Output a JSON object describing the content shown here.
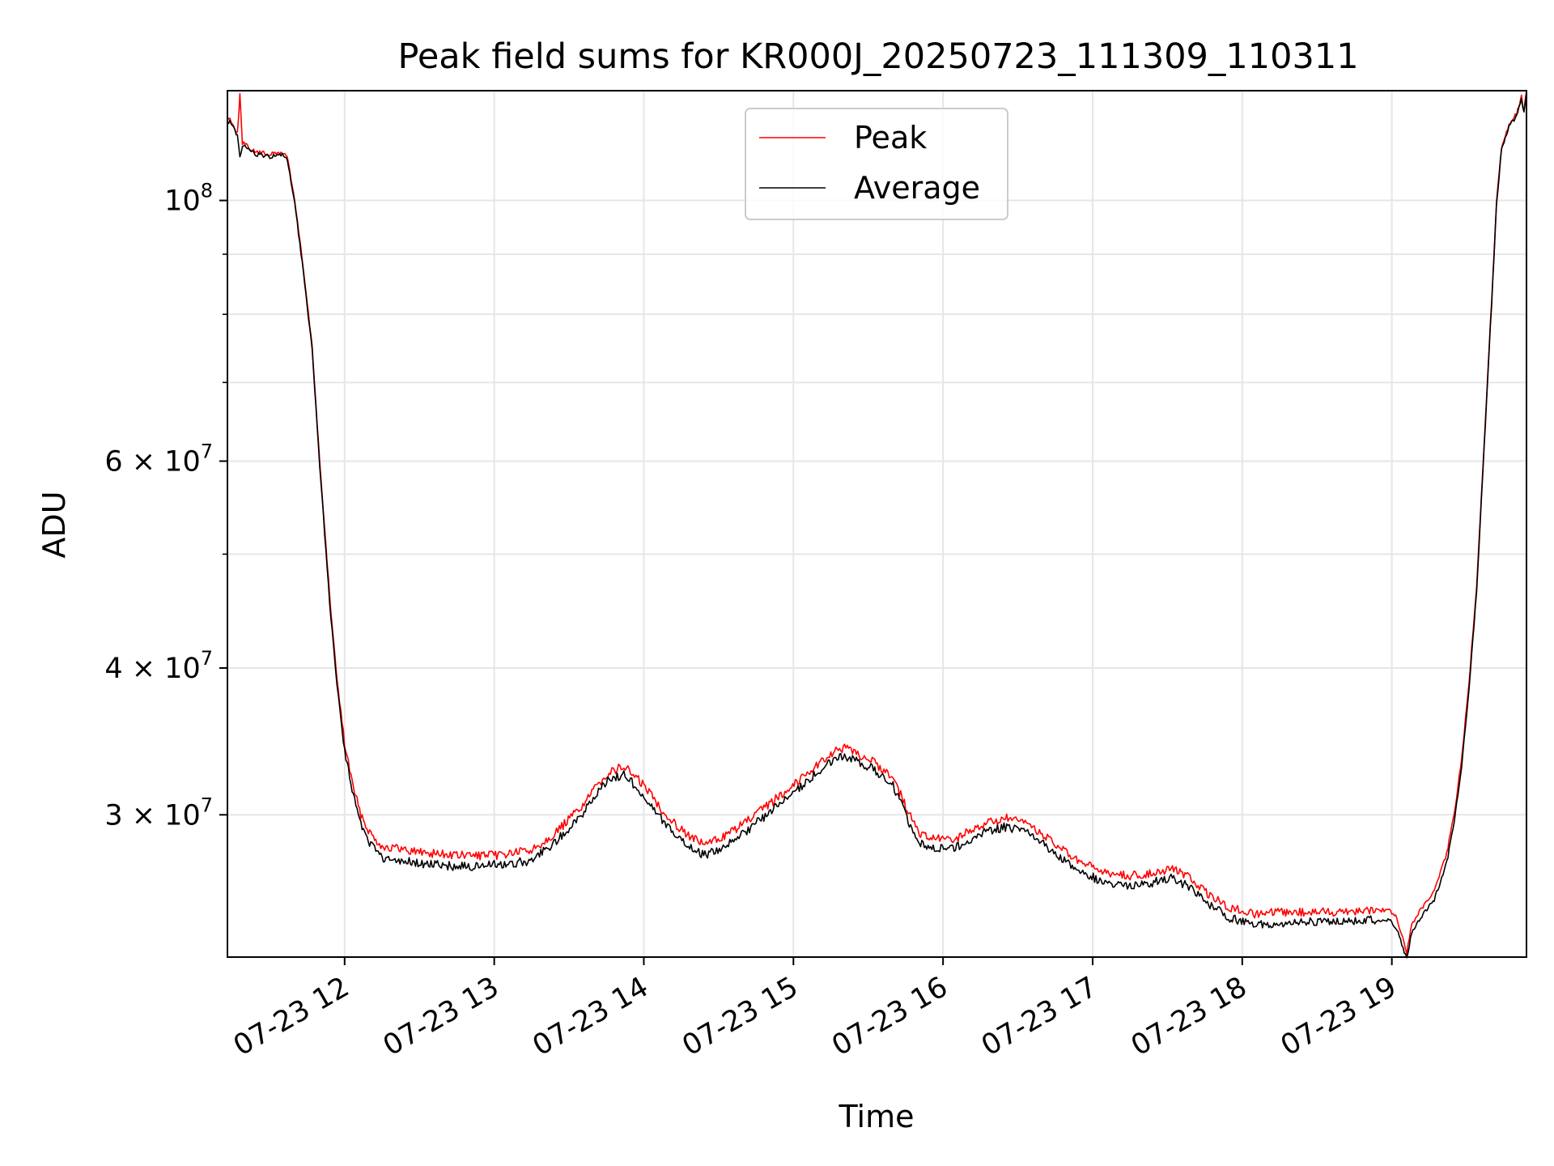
{
  "chart_data": {
    "type": "line",
    "title": "Peak field sums for KR000J_20250723_111309_110311",
    "xlabel": "Time",
    "ylabel": "ADU",
    "yscale": "log",
    "xlim": [
      "2025-07-23 11:13",
      "2025-07-23 19:54"
    ],
    "ylim": [
      22700000,
      124000000
    ],
    "grid": true,
    "legend": "upper center",
    "x_ticks": [
      {
        "x": "2025-07-23 12:00",
        "label": "07-23 12"
      },
      {
        "x": "2025-07-23 13:00",
        "label": "07-23 13"
      },
      {
        "x": "2025-07-23 14:00",
        "label": "07-23 14"
      },
      {
        "x": "2025-07-23 15:00",
        "label": "07-23 15"
      },
      {
        "x": "2025-07-23 16:00",
        "label": "07-23 16"
      },
      {
        "x": "2025-07-23 17:00",
        "label": "07-23 17"
      },
      {
        "x": "2025-07-23 18:00",
        "label": "07-23 18"
      },
      {
        "x": "2025-07-23 19:00",
        "label": "07-23 19"
      }
    ],
    "y_ticks": [
      {
        "y": 30000000,
        "label": "3 × 10^7",
        "base": "3 × 10",
        "exp": "7"
      },
      {
        "y": 40000000,
        "label": "4 × 10^7",
        "base": "4 × 10",
        "exp": "7"
      },
      {
        "y": 60000000,
        "label": "6 × 10^7",
        "base": "6 × 10",
        "exp": "7"
      },
      {
        "y": 100000000,
        "label": "10^8",
        "base": "10",
        "exp": "8"
      }
    ],
    "y_minor_ticks": [
      50000000,
      70000000,
      80000000,
      90000000
    ],
    "series": [
      {
        "name": "Peak",
        "color": "#ff0000",
        "points": [
          [
            "2025-07-23 11:13",
            117000000
          ],
          [
            "2025-07-23 11:14",
            117500000
          ],
          [
            "2025-07-23 11:17",
            114000000
          ],
          [
            "2025-07-23 11:18",
            123000000
          ],
          [
            "2025-07-23 11:19",
            112000000
          ],
          [
            "2025-07-23 11:24",
            110000000
          ],
          [
            "2025-07-23 11:30",
            109500000
          ],
          [
            "2025-07-23 11:35",
            109800000
          ],
          [
            "2025-07-23 11:37",
            109000000
          ],
          [
            "2025-07-23 11:40",
            100000000
          ],
          [
            "2025-07-23 11:43",
            89000000
          ],
          [
            "2025-07-23 11:47",
            75000000
          ],
          [
            "2025-07-23 11:50",
            60000000
          ],
          [
            "2025-07-23 11:54",
            46000000
          ],
          [
            "2025-07-23 11:57",
            39000000
          ],
          [
            "2025-07-23 12:00",
            34500000
          ],
          [
            "2025-07-23 12:03",
            32000000
          ],
          [
            "2025-07-23 12:06",
            30200000
          ],
          [
            "2025-07-23 12:10",
            29000000
          ],
          [
            "2025-07-23 12:15",
            28200000
          ],
          [
            "2025-07-23 12:30",
            27900000
          ],
          [
            "2025-07-23 12:45",
            27700000
          ],
          [
            "2025-07-23 13:00",
            27700000
          ],
          [
            "2025-07-23 13:15",
            28000000
          ],
          [
            "2025-07-23 13:25",
            29000000
          ],
          [
            "2025-07-23 13:35",
            30500000
          ],
          [
            "2025-07-23 13:45",
            32500000
          ],
          [
            "2025-07-23 13:52",
            33000000
          ],
          [
            "2025-07-23 14:00",
            31800000
          ],
          [
            "2025-07-23 14:10",
            29800000
          ],
          [
            "2025-07-23 14:20",
            28600000
          ],
          [
            "2025-07-23 14:25",
            28300000
          ],
          [
            "2025-07-23 14:35",
            29000000
          ],
          [
            "2025-07-23 14:45",
            30000000
          ],
          [
            "2025-07-23 14:55",
            31200000
          ],
          [
            "2025-07-23 15:05",
            32500000
          ],
          [
            "2025-07-23 15:15",
            33800000
          ],
          [
            "2025-07-23 15:20",
            34200000
          ],
          [
            "2025-07-23 15:30",
            33500000
          ],
          [
            "2025-07-23 15:40",
            32300000
          ],
          [
            "2025-07-23 15:45",
            30500000
          ],
          [
            "2025-07-23 15:50",
            29000000
          ],
          [
            "2025-07-23 15:55",
            28600000
          ],
          [
            "2025-07-23 16:05",
            28600000
          ],
          [
            "2025-07-23 16:15",
            29400000
          ],
          [
            "2025-07-23 16:25",
            29800000
          ],
          [
            "2025-07-23 16:35",
            29400000
          ],
          [
            "2025-07-23 16:45",
            28300000
          ],
          [
            "2025-07-23 16:55",
            27300000
          ],
          [
            "2025-07-23 17:05",
            26800000
          ],
          [
            "2025-07-23 17:15",
            26600000
          ],
          [
            "2025-07-23 17:25",
            26800000
          ],
          [
            "2025-07-23 17:32",
            27000000
          ],
          [
            "2025-07-23 17:38",
            26600000
          ],
          [
            "2025-07-23 17:45",
            25800000
          ],
          [
            "2025-07-23 17:55",
            25000000
          ],
          [
            "2025-07-23 18:05",
            24700000
          ],
          [
            "2025-07-23 18:20",
            24800000
          ],
          [
            "2025-07-23 18:35",
            24800000
          ],
          [
            "2025-07-23 18:50",
            24900000
          ],
          [
            "2025-07-23 18:59",
            24900000
          ],
          [
            "2025-07-23 19:02",
            24500000
          ],
          [
            "2025-07-23 19:05",
            23300000
          ],
          [
            "2025-07-23 19:06",
            22900000
          ],
          [
            "2025-07-23 19:08",
            24200000
          ],
          [
            "2025-07-23 19:12",
            25000000
          ],
          [
            "2025-07-23 19:17",
            25800000
          ],
          [
            "2025-07-23 19:22",
            27800000
          ],
          [
            "2025-07-23 19:25",
            30000000
          ],
          [
            "2025-07-23 19:28",
            33500000
          ],
          [
            "2025-07-23 19:31",
            39000000
          ],
          [
            "2025-07-23 19:34",
            47000000
          ],
          [
            "2025-07-23 19:37",
            62000000
          ],
          [
            "2025-07-23 19:40",
            82000000
          ],
          [
            "2025-07-23 19:42",
            100000000
          ],
          [
            "2025-07-23 19:44",
            111000000
          ],
          [
            "2025-07-23 19:47",
            116000000
          ],
          [
            "2025-07-23 19:50",
            118500000
          ],
          [
            "2025-07-23 19:52",
            122500000
          ],
          [
            "2025-07-23 19:53",
            119000000
          ],
          [
            "2025-07-23 19:54",
            124000000
          ]
        ]
      },
      {
        "name": "Average",
        "color": "#000000",
        "points": [
          [
            "2025-07-23 11:13",
            116500000
          ],
          [
            "2025-07-23 11:14",
            117000000
          ],
          [
            "2025-07-23 11:17",
            113500000
          ],
          [
            "2025-07-23 11:18",
            108500000
          ],
          [
            "2025-07-23 11:19",
            111500000
          ],
          [
            "2025-07-23 11:24",
            109500000
          ],
          [
            "2025-07-23 11:30",
            109000000
          ],
          [
            "2025-07-23 11:35",
            109300000
          ],
          [
            "2025-07-23 11:37",
            108500000
          ],
          [
            "2025-07-23 11:40",
            99500000
          ],
          [
            "2025-07-23 11:43",
            88500000
          ],
          [
            "2025-07-23 11:47",
            74500000
          ],
          [
            "2025-07-23 11:50",
            59500000
          ],
          [
            "2025-07-23 11:54",
            45500000
          ],
          [
            "2025-07-23 11:57",
            38600000
          ],
          [
            "2025-07-23 12:00",
            34000000
          ],
          [
            "2025-07-23 12:03",
            31500000
          ],
          [
            "2025-07-23 12:06",
            29700000
          ],
          [
            "2025-07-23 12:10",
            28400000
          ],
          [
            "2025-07-23 12:15",
            27500000
          ],
          [
            "2025-07-23 12:30",
            27300000
          ],
          [
            "2025-07-23 12:45",
            27100000
          ],
          [
            "2025-07-23 13:00",
            27200000
          ],
          [
            "2025-07-23 13:15",
            27400000
          ],
          [
            "2025-07-23 13:25",
            28500000
          ],
          [
            "2025-07-23 13:35",
            30000000
          ],
          [
            "2025-07-23 13:45",
            32000000
          ],
          [
            "2025-07-23 13:52",
            32500000
          ],
          [
            "2025-07-23 14:00",
            31200000
          ],
          [
            "2025-07-23 14:10",
            29200000
          ],
          [
            "2025-07-23 14:20",
            28000000
          ],
          [
            "2025-07-23 14:25",
            27700000
          ],
          [
            "2025-07-23 14:35",
            28400000
          ],
          [
            "2025-07-23 14:45",
            29500000
          ],
          [
            "2025-07-23 14:55",
            30700000
          ],
          [
            "2025-07-23 15:05",
            32000000
          ],
          [
            "2025-07-23 15:15",
            33300000
          ],
          [
            "2025-07-23 15:20",
            33700000
          ],
          [
            "2025-07-23 15:30",
            33000000
          ],
          [
            "2025-07-23 15:40",
            31800000
          ],
          [
            "2025-07-23 15:45",
            30000000
          ],
          [
            "2025-07-23 15:50",
            28500000
          ],
          [
            "2025-07-23 15:55",
            28100000
          ],
          [
            "2025-07-23 16:05",
            28100000
          ],
          [
            "2025-07-23 16:15",
            28900000
          ],
          [
            "2025-07-23 16:25",
            29300000
          ],
          [
            "2025-07-23 16:35",
            28900000
          ],
          [
            "2025-07-23 16:45",
            27800000
          ],
          [
            "2025-07-23 16:55",
            26800000
          ],
          [
            "2025-07-23 17:05",
            26300000
          ],
          [
            "2025-07-23 17:15",
            26100000
          ],
          [
            "2025-07-23 17:25",
            26300000
          ],
          [
            "2025-07-23 17:32",
            26500000
          ],
          [
            "2025-07-23 17:38",
            26100000
          ],
          [
            "2025-07-23 17:45",
            25300000
          ],
          [
            "2025-07-23 17:55",
            24500000
          ],
          [
            "2025-07-23 18:05",
            24200000
          ],
          [
            "2025-07-23 18:20",
            24300000
          ],
          [
            "2025-07-23 18:35",
            24300000
          ],
          [
            "2025-07-23 18:50",
            24400000
          ],
          [
            "2025-07-23 18:59",
            24400000
          ],
          [
            "2025-07-23 19:02",
            24000000
          ],
          [
            "2025-07-23 19:05",
            22900000
          ],
          [
            "2025-07-23 19:06",
            22700000
          ],
          [
            "2025-07-23 19:08",
            23800000
          ],
          [
            "2025-07-23 19:12",
            24600000
          ],
          [
            "2025-07-23 19:17",
            25400000
          ],
          [
            "2025-07-23 19:22",
            27300000
          ],
          [
            "2025-07-23 19:25",
            29500000
          ],
          [
            "2025-07-23 19:28",
            33000000
          ],
          [
            "2025-07-23 19:31",
            38500000
          ],
          [
            "2025-07-23 19:34",
            46500000
          ],
          [
            "2025-07-23 19:37",
            61500000
          ],
          [
            "2025-07-23 19:40",
            81500000
          ],
          [
            "2025-07-23 19:42",
            99500000
          ],
          [
            "2025-07-23 19:44",
            110500000
          ],
          [
            "2025-07-23 19:47",
            115500000
          ],
          [
            "2025-07-23 19:50",
            118000000
          ],
          [
            "2025-07-23 19:52",
            122000000
          ],
          [
            "2025-07-23 19:53",
            118500000
          ],
          [
            "2025-07-23 19:54",
            123500000
          ]
        ]
      }
    ]
  }
}
